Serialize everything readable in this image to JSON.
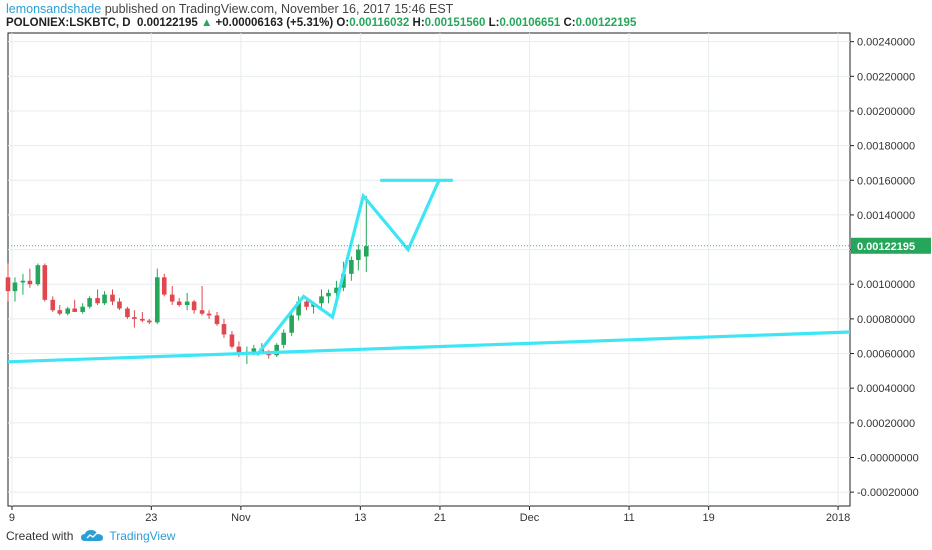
{
  "header": {
    "author": "lemonsandshade",
    "published_text": " published on TradingView.com, November 16, 2017 15:46 EST",
    "symbol": "POLONIEX:LSKBTC, D",
    "last": "0.00122195",
    "change_icon": "triangle-up-icon",
    "change": "+0.00006163 (+5.31%)",
    "o_label": "O:",
    "o_value": "0.00116032",
    "h_label": "H:",
    "h_value": "0.00151560",
    "l_label": "L:",
    "l_value": "0.00106651",
    "c_label": "C:",
    "c_value": "0.00122195"
  },
  "footer": {
    "created_with": "Created with",
    "brand": "TradingView",
    "brand_icon": "tradingview-cloud-icon"
  },
  "colors": {
    "up": "#26a65b",
    "down": "#e0474f",
    "drawing": "#3ee6f5",
    "grid": "#e6ecef",
    "price_line": "#4aa3a3"
  },
  "chart_data": {
    "type": "candlestick",
    "symbol": "POLONIEX:LSKBTC",
    "interval": "D",
    "ylim": [
      -0.00028,
      0.00245
    ],
    "y_ticks": [
      "0.00240000",
      "0.00220000",
      "0.00200000",
      "0.00180000",
      "0.00160000",
      "0.00140000",
      "0.00120000",
      "0.00100000",
      "0.00080000",
      "0.00060000",
      "0.00040000",
      "0.00020000",
      "-0.00000000",
      "-0.00020000"
    ],
    "y_tick_values": [
      0.0024,
      0.0022,
      0.002,
      0.0018,
      0.0016,
      0.0014,
      0.0012,
      0.001,
      0.0008,
      0.0006,
      0.0004,
      0.0002,
      0,
      -0.0002
    ],
    "x_ticks": [
      "9",
      "23",
      "Nov",
      "13",
      "21",
      "Dec",
      "11",
      "19",
      "2018"
    ],
    "x_tick_days": [
      0,
      14,
      23,
      35,
      43,
      52,
      62,
      70,
      83
    ],
    "current_price": "0.00122195",
    "current_value": 0.00122195,
    "x_days_range": [
      -0.4,
      84.2
    ],
    "candles": [
      [
        -0.4,
        0.00104,
        0.00112,
        0.0009,
        0.00096
      ],
      [
        0.3,
        0.00096,
        0.00104,
        0.0009,
        0.00101
      ],
      [
        1.1,
        0.00101,
        0.00106,
        0.00094,
        0.00102
      ],
      [
        1.8,
        0.00102,
        0.00109,
        0.00098,
        0.001
      ],
      [
        2.6,
        0.001,
        0.00112,
        0.00099,
        0.00111
      ],
      [
        3.3,
        0.00111,
        0.00112,
        0.0009,
        0.00091
      ],
      [
        4.1,
        0.00091,
        0.00093,
        0.00084,
        0.00085
      ],
      [
        4.8,
        0.00085,
        0.00088,
        0.00082,
        0.00083
      ],
      [
        5.6,
        0.00083,
        0.00087,
        0.00082,
        0.00086
      ],
      [
        6.3,
        0.00086,
        0.00091,
        0.00084,
        0.00084
      ],
      [
        7.1,
        0.00084,
        0.00089,
        0.00083,
        0.00087
      ],
      [
        7.8,
        0.00087,
        0.00093,
        0.00086,
        0.00092
      ],
      [
        8.6,
        0.00092,
        0.00097,
        0.00088,
        0.00089
      ],
      [
        9.3,
        0.00089,
        0.00096,
        0.00088,
        0.00094
      ],
      [
        10.1,
        0.00094,
        0.00097,
        0.00088,
        0.0009
      ],
      [
        10.8,
        0.0009,
        0.00092,
        0.00085,
        0.00086
      ],
      [
        11.6,
        0.00086,
        0.00087,
        0.0008,
        0.00081
      ],
      [
        12.3,
        0.00081,
        0.00085,
        0.00075,
        0.0008
      ],
      [
        13.1,
        0.0008,
        0.00084,
        0.00078,
        0.00079
      ],
      [
        13.8,
        0.00079,
        0.0008,
        0.00077,
        0.00078
      ],
      [
        14.6,
        0.00078,
        0.00109,
        0.00077,
        0.00104
      ],
      [
        15.3,
        0.00104,
        0.00106,
        0.00093,
        0.00094
      ],
      [
        16.1,
        0.00094,
        0.00099,
        0.00088,
        0.0009
      ],
      [
        16.8,
        0.0009,
        0.00092,
        0.00087,
        0.00088
      ],
      [
        17.6,
        0.00088,
        0.00095,
        0.00085,
        0.0009
      ],
      [
        18.3,
        0.0009,
        0.00091,
        0.00083,
        0.00085
      ],
      [
        19.1,
        0.00085,
        0.00099,
        0.00082,
        0.00083
      ],
      [
        19.8,
        0.00083,
        0.00085,
        0.0008,
        0.00082
      ],
      [
        20.6,
        0.00082,
        0.00084,
        0.00076,
        0.00077
      ],
      [
        21.3,
        0.00077,
        0.0008,
        0.00069,
        0.00071
      ],
      [
        22.1,
        0.00071,
        0.00073,
        0.00063,
        0.00064
      ],
      [
        22.8,
        0.00064,
        0.00067,
        0.00058,
        0.0006
      ],
      [
        23.6,
        0.0006,
        0.00064,
        0.00054,
        0.00061
      ],
      [
        24.3,
        0.00061,
        0.00065,
        0.00059,
        0.00063
      ],
      [
        25.1,
        0.00063,
        0.00066,
        0.0006,
        0.0006
      ],
      [
        25.8,
        0.0006,
        0.00062,
        0.00057,
        0.00059
      ],
      [
        26.6,
        0.00059,
        0.00066,
        0.00058,
        0.00065
      ],
      [
        27.3,
        0.00065,
        0.00074,
        0.00063,
        0.00072
      ],
      [
        28.1,
        0.00072,
        0.00084,
        0.0007,
        0.00082
      ],
      [
        28.8,
        0.00082,
        0.00093,
        0.00079,
        0.0009
      ],
      [
        29.6,
        0.0009,
        0.00092,
        0.00085,
        0.00087
      ],
      [
        30.3,
        0.00087,
        0.0009,
        0.00083,
        0.00089
      ],
      [
        31.1,
        0.00089,
        0.00097,
        0.00086,
        0.00093
      ],
      [
        31.8,
        0.00093,
        0.00097,
        0.00089,
        0.00095
      ],
      [
        32.6,
        0.00095,
        0.00102,
        0.00093,
        0.00098
      ],
      [
        33.3,
        0.00098,
        0.00113,
        0.00096,
        0.00106
      ],
      [
        34.1,
        0.00106,
        0.00116,
        0.00102,
        0.00114
      ],
      [
        34.8,
        0.00114,
        0.00123,
        0.00108,
        0.0012
      ],
      [
        35.6,
        0.00116,
        0.00151,
        0.00107,
        0.00122
      ]
    ],
    "drawings": [
      {
        "type": "trendline",
        "points": [
          [
            -0.4,
            0.000552
          ],
          [
            84.2,
            0.000724
          ]
        ]
      },
      {
        "type": "polyline",
        "points": [
          [
            24.6,
            0.00059
          ],
          [
            29.3,
            0.00093
          ],
          [
            32.2,
            0.00081
          ],
          [
            35.3,
            0.00151
          ],
          [
            39.8,
            0.0012
          ],
          [
            42.9,
            0.0016
          ]
        ]
      },
      {
        "type": "horizontal-segment",
        "points": [
          [
            37.0,
            0.0016
          ],
          [
            44.3,
            0.0016
          ]
        ]
      }
    ]
  }
}
